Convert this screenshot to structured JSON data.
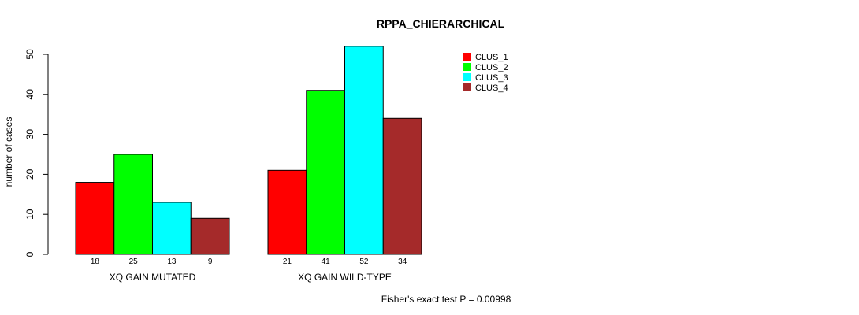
{
  "chart_data": {
    "type": "bar",
    "title": "RPPA_CHIERARCHICAL",
    "ylabel": "number of cases",
    "xlabel": "",
    "ylim": [
      0,
      50
    ],
    "yticks": [
      0,
      10,
      20,
      30,
      40,
      50
    ],
    "categories": [
      "XQ GAIN MUTATED",
      "XQ GAIN WILD-TYPE"
    ],
    "series": [
      {
        "name": "CLUS_1",
        "color": "#ff0000",
        "values": [
          18,
          21
        ]
      },
      {
        "name": "CLUS_2",
        "color": "#00ff00",
        "values": [
          25,
          41
        ]
      },
      {
        "name": "CLUS_3",
        "color": "#00ffff",
        "values": [
          13,
          52
        ]
      },
      {
        "name": "CLUS_4",
        "color": "#a52a2a",
        "values": [
          9,
          34
        ]
      }
    ],
    "legend_position": "top-right",
    "grid": false,
    "footnote": "Fisher's exact test P = 0.00998"
  }
}
